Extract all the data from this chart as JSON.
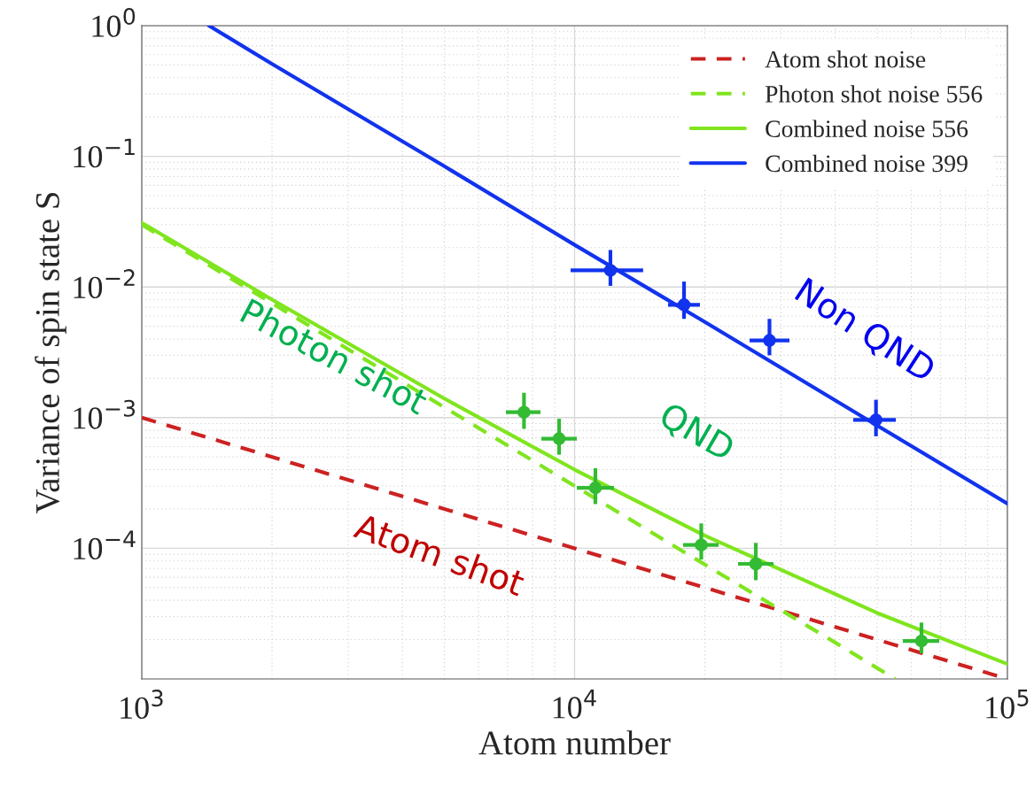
{
  "chart_data": {
    "type": "line",
    "xlabel": "Atom number",
    "ylabel": "Variance of spin state S",
    "log": "xy",
    "grid": true,
    "legend": "top right",
    "xlim": [
      1000,
      100000
    ],
    "ylim": [
      1e-05,
      1
    ],
    "xticks": [
      {
        "value": 1000,
        "label": "10$^{3}$"
      },
      {
        "value": 10000,
        "label": "10$^{4}$"
      },
      {
        "value": 100000,
        "label": "10$^{5}$"
      }
    ],
    "yticks": [
      {
        "value": 0.0001,
        "label": "10$^{−4}$"
      },
      {
        "value": 0.001,
        "label": "10$^{−3}$"
      },
      {
        "value": 0.01,
        "label": "10$^{−2}$"
      },
      {
        "value": 0.1,
        "label": "10$^{−1}$"
      },
      {
        "value": 1,
        "label": "10$^{0}$"
      }
    ],
    "series": [
      {
        "name": "Atom shot noise",
        "line_style": "dashed",
        "color": "#cc2222",
        "x": [
          1000,
          2000,
          5000,
          10000,
          20000,
          50000,
          100000
        ],
        "values": [
          0.001,
          0.0005,
          0.0002,
          0.0001,
          5e-05,
          2e-05,
          1e-05
        ]
      },
      {
        "name": "Photon shot noise 556",
        "line_style": "dashed",
        "color": "#80e51e",
        "x": [
          1000,
          2000,
          5000,
          10000,
          20000,
          40000,
          55000
        ],
        "values": [
          0.03,
          0.0075,
          0.0012,
          0.0003,
          7.5e-05,
          1.9e-05,
          1e-05
        ]
      },
      {
        "name": "Combined noise 556",
        "line_style": "solid",
        "color": "#80e51e",
        "x": [
          1000,
          2000,
          5000,
          10000,
          20000,
          50000,
          100000
        ],
        "values": [
          0.031,
          0.008,
          0.0014,
          0.0004,
          0.000125,
          3.2e-05,
          1.3e-05
        ]
      },
      {
        "name": "Combined noise 399",
        "line_style": "solid",
        "color": "#1133ee",
        "x": [
          1430,
          2000,
          5000,
          10000,
          20000,
          50000,
          100000
        ],
        "values": [
          1,
          0.51,
          0.084,
          0.021,
          0.0054,
          0.00087,
          0.00022
        ]
      },
      {
        "type": "scatter",
        "marker": "circle",
        "color": "#33bb33",
        "x": [
          7640,
          9210,
          11170,
          19620,
          26220,
          63300
        ],
        "values": [
          0.0011,
          0.00069,
          0.00029,
          0.000106,
          7.6e-05,
          1.95e-05
        ],
        "errors": [
          [
            0.00082,
            0.00155
          ],
          [
            0.00052,
            0.00098
          ],
          [
            0.000218,
            0.00041
          ],
          [
            8.2e-05,
            0.000155
          ],
          [
            5.7e-05,
            0.00011
          ],
          [
            1.57e-05,
            2.7e-05
          ]
        ],
        "xerrors": [
          [
            6940,
            8340
          ],
          [
            8380,
            10120
          ],
          [
            10120,
            12330
          ],
          [
            17810,
            21510
          ],
          [
            23860,
            28810
          ],
          [
            57330,
            69580
          ]
        ]
      },
      {
        "type": "scatter",
        "marker": "circle",
        "color": "#1133ee",
        "x": [
          12100,
          17900,
          28200,
          49700
        ],
        "values": [
          0.0134,
          0.0073,
          0.0039,
          0.00096
        ],
        "errors": [
          [
            0.0102,
            0.0192
          ],
          [
            0.0057,
            0.011
          ],
          [
            0.003,
            0.0057
          ],
          [
            0.00072,
            0.00137
          ]
        ],
        "xerrors": [
          [
            9790,
            14400
          ],
          [
            16440,
            19480
          ],
          [
            25370,
            31360
          ],
          [
            44040,
            55230
          ]
        ]
      }
    ],
    "annotations": [
      "Non QND",
      "QND",
      "Photon shot",
      "Atom shot"
    ]
  }
}
